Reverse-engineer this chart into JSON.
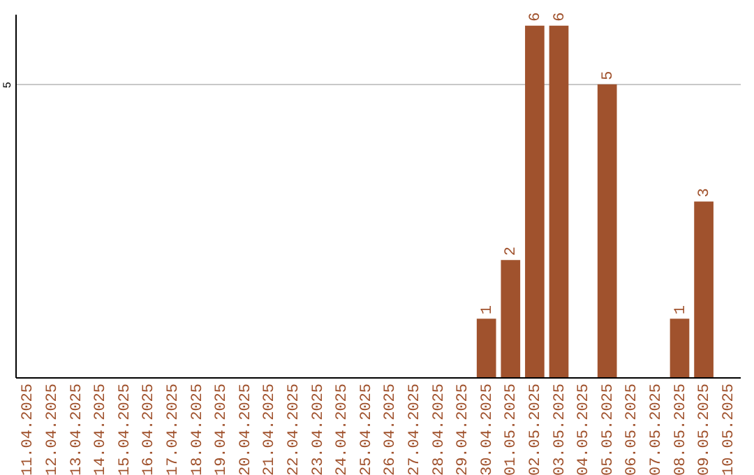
{
  "chart_data": {
    "type": "bar",
    "categories": [
      "11.04.2025",
      "12.04.2025",
      "13.04.2025",
      "14.04.2025",
      "15.04.2025",
      "16.04.2025",
      "17.04.2025",
      "18.04.2025",
      "19.04.2025",
      "20.04.2025",
      "21.04.2025",
      "22.04.2025",
      "23.04.2025",
      "24.04.2025",
      "25.04.2025",
      "26.04.2025",
      "27.04.2025",
      "28.04.2025",
      "29.04.2025",
      "30.04.2025",
      "01.05.2025",
      "02.05.2025",
      "03.05.2025",
      "04.05.2025",
      "05.05.2025",
      "06.05.2025",
      "07.05.2025",
      "08.05.2025",
      "09.05.2025",
      "10.05.2025"
    ],
    "values": [
      null,
      null,
      null,
      null,
      null,
      null,
      null,
      null,
      null,
      null,
      null,
      null,
      null,
      null,
      null,
      null,
      null,
      null,
      null,
      1,
      2,
      6,
      6,
      null,
      5,
      null,
      null,
      1,
      3,
      null
    ],
    "data_labels": true,
    "color": "#a0522d",
    "ylim": [
      0,
      6.2
    ],
    "yticks": [
      5
    ],
    "grid": "y"
  }
}
